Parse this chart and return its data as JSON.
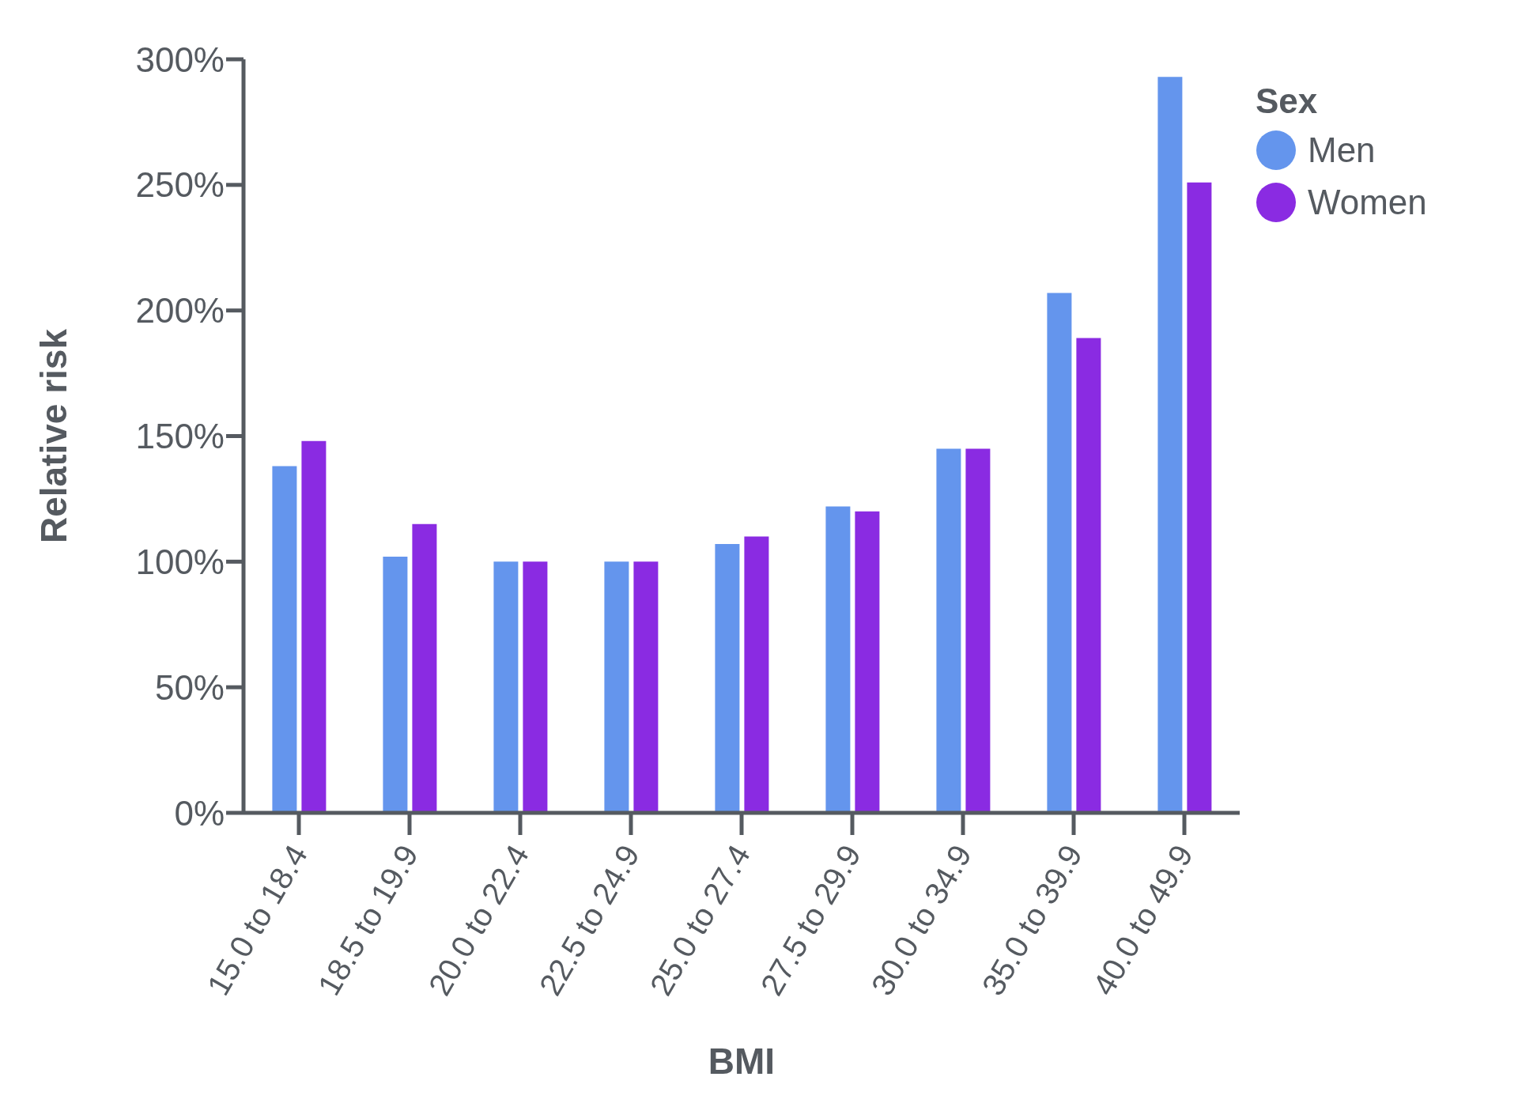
{
  "chart_data": {
    "type": "bar",
    "xlabel": "BMI",
    "ylabel": "Relative risk",
    "legend_title": "Sex",
    "categories": [
      "15.0 to 18.4",
      "18.5 to 19.9",
      "20.0 to 22.4",
      "22.5 to 24.9",
      "25.0 to 27.4",
      "27.5 to 29.9",
      "30.0 to 34.9",
      "35.0 to 39.9",
      "40.0 to 49.9"
    ],
    "series": [
      {
        "name": "Men",
        "color": "#6495ed",
        "values": [
          138,
          102,
          100,
          100,
          107,
          122,
          145,
          207,
          293
        ]
      },
      {
        "name": "Women",
        "color": "#8a2be2",
        "values": [
          148,
          115,
          100,
          100,
          110,
          120,
          145,
          189,
          251
        ]
      }
    ],
    "ylim": [
      0,
      300
    ],
    "yticks": [
      {
        "value": 0,
        "label": "0%"
      },
      {
        "value": 50,
        "label": "50%"
      },
      {
        "value": 100,
        "label": "100%"
      },
      {
        "value": 150,
        "label": "150%"
      },
      {
        "value": 200,
        "label": "200%"
      },
      {
        "value": 250,
        "label": "250%"
      },
      {
        "value": 300,
        "label": "300%"
      }
    ],
    "grid": false,
    "legend": "top right"
  }
}
